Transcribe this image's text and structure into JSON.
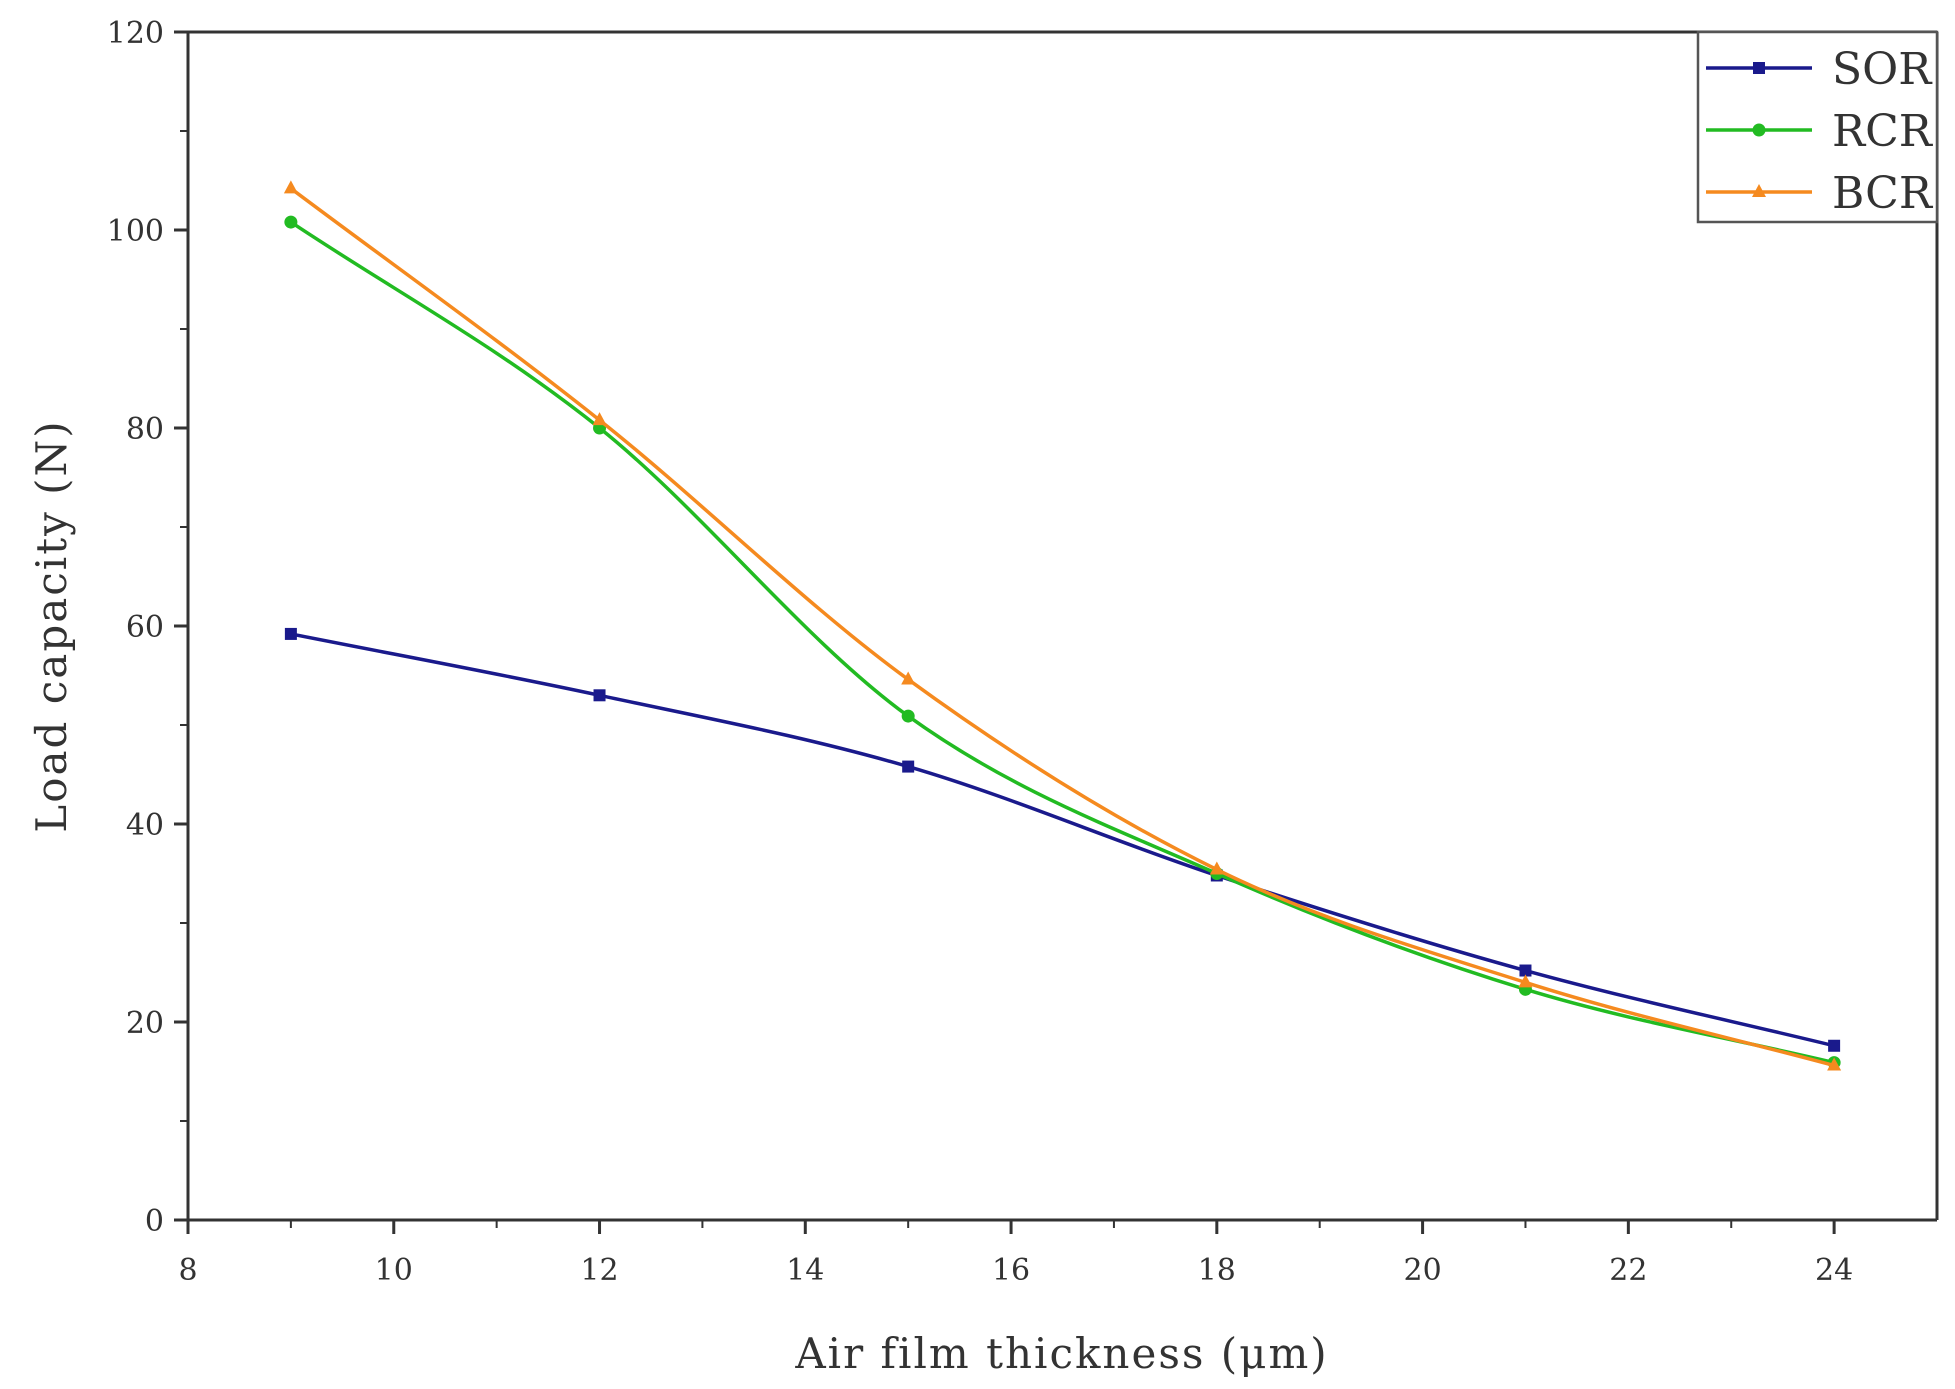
{
  "chart_data": {
    "type": "line",
    "title": "",
    "xlabel": "Air film thickness (μm)",
    "ylabel": "Load capacity (N)",
    "xlim": [
      8,
      25
    ],
    "ylim": [
      0,
      120
    ],
    "xticks": [
      8,
      10,
      12,
      14,
      16,
      18,
      20,
      22,
      24
    ],
    "yticks": [
      0,
      20,
      40,
      60,
      80,
      100,
      120
    ],
    "x": [
      9,
      12,
      15,
      18,
      21,
      24
    ],
    "series": [
      {
        "name": "SOR",
        "color": "#1a1a8c",
        "marker": "square",
        "values": [
          59.2,
          53.0,
          45.8,
          34.8,
          25.2,
          17.6
        ]
      },
      {
        "name": "RCR",
        "color": "#22bb22",
        "marker": "circle",
        "values": [
          100.8,
          80.0,
          50.9,
          35.0,
          23.3,
          15.9
        ]
      },
      {
        "name": "BCR",
        "color": "#f58a1f",
        "marker": "triangle",
        "values": [
          104.2,
          80.8,
          54.6,
          35.4,
          24.0,
          15.6
        ]
      }
    ],
    "grid": false,
    "legend_position": "top-right",
    "smooth": true
  }
}
